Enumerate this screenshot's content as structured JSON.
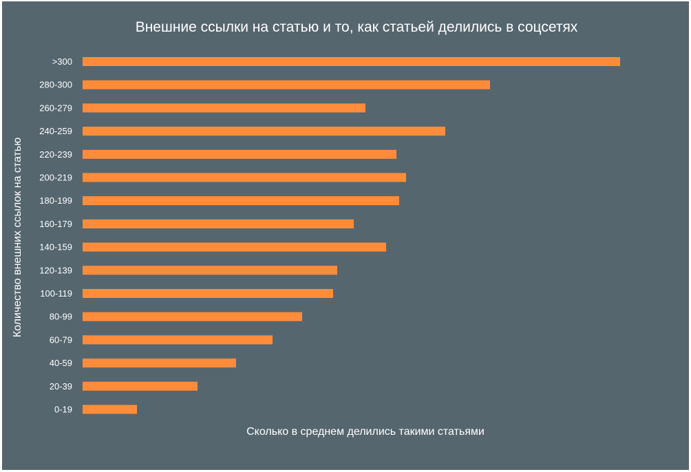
{
  "chart_data": {
    "type": "bar",
    "orientation": "horizontal",
    "title": "Внешние ссылки на статью и то, как статьей делились в соцсетях",
    "xlabel": "Сколько в среднем делились такими статьями",
    "ylabel": "Количество внешних ссылок на статью",
    "categories": [
      "0-19",
      "20-39",
      "40-59",
      "60-79",
      "80-99",
      "100-119",
      "120-139",
      "140-159",
      "160-179",
      "180-199",
      "200-219",
      "220-239",
      "240-259",
      "260-279",
      "280-300",
      ">300"
    ],
    "values": [
      79,
      167,
      223,
      276,
      319,
      364,
      370,
      441,
      394,
      460,
      470,
      456,
      527,
      411,
      592,
      781
    ],
    "xlim": [
      0,
      800
    ],
    "grid": false,
    "legend": "none",
    "bar_color": "#ff8c3a",
    "background_color": "#56666f"
  }
}
